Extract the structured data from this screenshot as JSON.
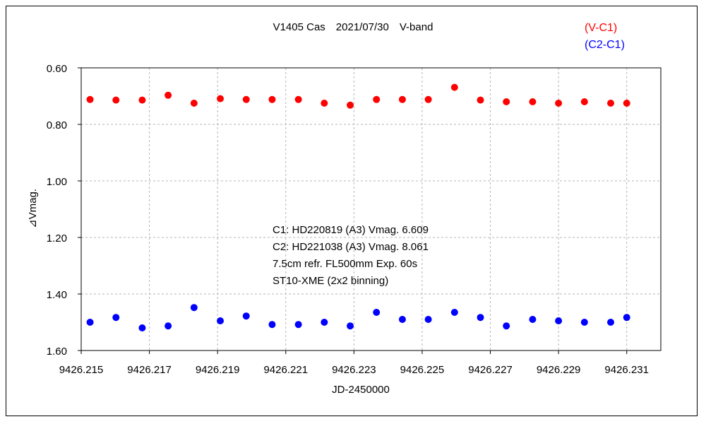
{
  "chart_data": {
    "type": "scatter",
    "title": "V1405 Cas　2021/07/30　V-band",
    "xlabel": "JD-2450000",
    "ylabel": "⊿Vmag.",
    "xlim": [
      9426.215,
      9426.232
    ],
    "ylim": [
      1.6,
      0.6
    ],
    "y_inverted": true,
    "grid": true,
    "legend_position": "top-right",
    "x_ticks": [
      9426.215,
      9426.217,
      9426.219,
      9426.221,
      9426.223,
      9426.225,
      9426.227,
      9426.229,
      9426.231
    ],
    "x_tick_labels": [
      "9426.215",
      "9426.217",
      "9426.219",
      "9426.221",
      "9426.223",
      "9426.225",
      "9426.227",
      "9426.229",
      "9426.231"
    ],
    "y_ticks": [
      0.6,
      0.8,
      1.0,
      1.2,
      1.4,
      1.6
    ],
    "y_tick_labels": [
      "0.60",
      "0.80",
      "1.00",
      "1.20",
      "1.40",
      "1.60"
    ],
    "annotations": [
      "C1: HD220819 (A3) Vmag. 6.609",
      "C2: HD221038 (A3) Vmag. 8.061",
      "7.5cm refr. FL500mm Exp. 60s",
      "ST10-XME (2x2 binning)"
    ],
    "series": [
      {
        "name": "(V-C1)",
        "color": "#ff0000",
        "x": [
          9426.21526,
          9426.21602,
          9426.21679,
          9426.21755,
          9426.21831,
          9426.21908,
          9426.21984,
          9426.2206,
          9426.22137,
          9426.22213,
          9426.22289,
          9426.22366,
          9426.22442,
          9426.22518,
          9426.22595,
          9426.22671,
          9426.22747,
          9426.22824,
          9426.229,
          9426.22976,
          9426.23053,
          9426.231
        ],
        "y": [
          0.712,
          0.714,
          0.714,
          0.697,
          0.725,
          0.709,
          0.712,
          0.712,
          0.712,
          0.725,
          0.732,
          0.712,
          0.712,
          0.712,
          0.669,
          0.714,
          0.72,
          0.72,
          0.725,
          0.72,
          0.725,
          0.725
        ]
      },
      {
        "name": "(C2-C1)",
        "color": "#0000ff",
        "x": [
          9426.21526,
          9426.21602,
          9426.21679,
          9426.21755,
          9426.21831,
          9426.21908,
          9426.21984,
          9426.2206,
          9426.22137,
          9426.22213,
          9426.22289,
          9426.22366,
          9426.22442,
          9426.22518,
          9426.22595,
          9426.22671,
          9426.22747,
          9426.22824,
          9426.229,
          9426.22976,
          9426.23053,
          9426.231
        ],
        "y": [
          1.5,
          1.483,
          1.52,
          1.513,
          1.448,
          1.495,
          1.478,
          1.508,
          1.508,
          1.5,
          1.513,
          1.465,
          1.49,
          1.49,
          1.465,
          1.483,
          1.513,
          1.49,
          1.495,
          1.5,
          1.5,
          1.483
        ]
      }
    ]
  }
}
